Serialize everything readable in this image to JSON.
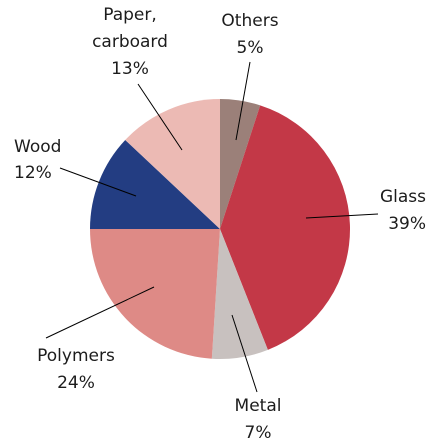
{
  "chart_data": {
    "type": "pie",
    "title": "",
    "slices": [
      {
        "name": "Others",
        "label": "Others",
        "value": 5,
        "value_label": "5%",
        "color": "#9b8079"
      },
      {
        "name": "Glass",
        "label": "Glass",
        "value": 39,
        "value_label": "39%",
        "color": "#c33847"
      },
      {
        "name": "Metal",
        "label": "Metal",
        "value": 7,
        "value_label": "7%",
        "color": "#c8c1bf"
      },
      {
        "name": "Polymers",
        "label": "Polymers",
        "value": 24,
        "value_label": "24%",
        "color": "#de8a86"
      },
      {
        "name": "Wood",
        "label": "Wood",
        "value": 12,
        "value_label": "12%",
        "color": "#233d82"
      },
      {
        "name": "Paper, carboard",
        "label_lines": [
          "Paper,",
          "carboard"
        ],
        "value": 13,
        "value_label": "13%",
        "color": "#ecbab4"
      }
    ],
    "start_angle": "12 o'clock",
    "direction": "clockwise",
    "legend": "none"
  }
}
